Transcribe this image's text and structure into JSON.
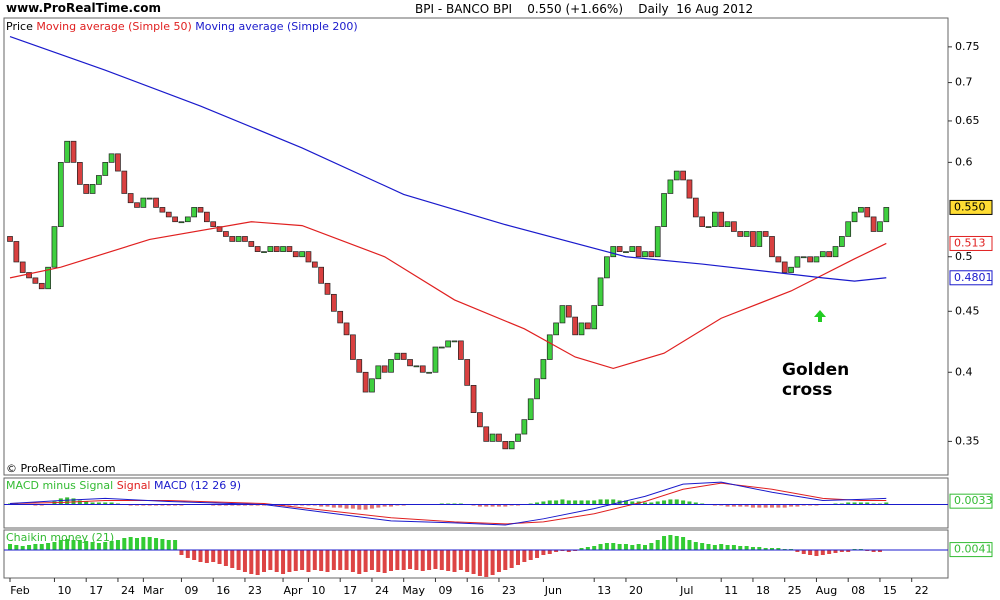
{
  "site": "www.ProRealTime.com",
  "instrument": "BPI - BANCO BPI",
  "quote": "0.550 (+1.66%)",
  "period": "Daily",
  "date": "16 Aug 2012",
  "copyright": "© ProRealTime.com",
  "chart_data": [
    {
      "type": "candlestick",
      "legend_prefix": "Price",
      "up_color": "#3fcf3f",
      "down_color": "#d94040",
      "log": true,
      "ylim": [
        0.328,
        0.793
      ],
      "yticks": [
        0.35,
        0.4,
        0.45,
        0.5,
        0.6,
        0.65,
        0.7,
        0.75
      ],
      "xticks": [
        {
          "value": 0,
          "label": "Feb"
        },
        {
          "value": 7,
          "label": "10"
        },
        {
          "value": 12,
          "label": "17"
        },
        {
          "value": 17,
          "label": "24"
        },
        {
          "value": 21,
          "label": "Mar"
        },
        {
          "value": 27,
          "label": "09"
        },
        {
          "value": 32,
          "label": "16"
        },
        {
          "value": 37,
          "label": "23"
        },
        {
          "value": 43,
          "label": "Apr"
        },
        {
          "value": 47,
          "label": "10"
        },
        {
          "value": 52,
          "label": "17"
        },
        {
          "value": 57,
          "label": "24"
        },
        {
          "value": 62,
          "label": "May"
        },
        {
          "value": 67,
          "label": "09"
        },
        {
          "value": 72,
          "label": "16"
        },
        {
          "value": 77,
          "label": "23"
        },
        {
          "value": 84,
          "label": "Jun"
        },
        {
          "value": 92,
          "label": "13"
        },
        {
          "value": 97,
          "label": "20"
        },
        {
          "value": 105,
          "label": "Jul"
        },
        {
          "value": 112,
          "label": "11"
        },
        {
          "value": 117,
          "label": "18"
        },
        {
          "value": 122,
          "label": "25"
        },
        {
          "value": 127,
          "label": "Aug"
        },
        {
          "value": 132,
          "label": "08"
        },
        {
          "value": 137,
          "label": "15"
        },
        {
          "value": 142,
          "label": "22"
        }
      ],
      "close": [
        0.515,
        0.495,
        0.485,
        0.48,
        0.475,
        0.47,
        0.49,
        0.53,
        0.6,
        0.625,
        0.6,
        0.575,
        0.565,
        0.575,
        0.585,
        0.6,
        0.61,
        0.59,
        0.565,
        0.555,
        0.55,
        0.56,
        0.56,
        0.55,
        0.545,
        0.54,
        0.535,
        0.535,
        0.54,
        0.55,
        0.545,
        0.535,
        0.53,
        0.525,
        0.52,
        0.515,
        0.52,
        0.515,
        0.51,
        0.505,
        0.505,
        0.51,
        0.505,
        0.51,
        0.505,
        0.5,
        0.505,
        0.495,
        0.49,
        0.475,
        0.465,
        0.45,
        0.44,
        0.43,
        0.41,
        0.4,
        0.385,
        0.395,
        0.405,
        0.4,
        0.41,
        0.415,
        0.41,
        0.405,
        0.405,
        0.4,
        0.4,
        0.42,
        0.42,
        0.425,
        0.425,
        0.41,
        0.39,
        0.37,
        0.36,
        0.35,
        0.355,
        0.35,
        0.345,
        0.35,
        0.355,
        0.365,
        0.38,
        0.395,
        0.41,
        0.43,
        0.44,
        0.455,
        0.445,
        0.43,
        0.44,
        0.435,
        0.455,
        0.48,
        0.5,
        0.51,
        0.505,
        0.505,
        0.51,
        0.5,
        0.505,
        0.5,
        0.53,
        0.565,
        0.58,
        0.59,
        0.58,
        0.56,
        0.54,
        0.53,
        0.53,
        0.545,
        0.53,
        0.535,
        0.525,
        0.52,
        0.525,
        0.51,
        0.525,
        0.52,
        0.5,
        0.495,
        0.485,
        0.49,
        0.5,
        0.5,
        0.495,
        0.5,
        0.505,
        0.5,
        0.51,
        0.52,
        0.535,
        0.545,
        0.55,
        0.54,
        0.525,
        0.535,
        0.55
      ],
      "open": [
        0.52,
        0.515,
        0.495,
        0.485,
        0.48,
        0.475,
        0.47,
        0.49,
        0.53,
        0.6,
        0.625,
        0.6,
        0.575,
        0.565,
        0.575,
        0.585,
        0.6,
        0.61,
        0.59,
        0.565,
        0.555,
        0.55,
        0.56,
        0.56,
        0.55,
        0.545,
        0.54,
        0.535,
        0.535,
        0.54,
        0.55,
        0.545,
        0.535,
        0.53,
        0.525,
        0.52,
        0.515,
        0.52,
        0.515,
        0.51,
        0.505,
        0.505,
        0.51,
        0.505,
        0.51,
        0.505,
        0.5,
        0.505,
        0.495,
        0.49,
        0.475,
        0.465,
        0.45,
        0.44,
        0.43,
        0.41,
        0.4,
        0.385,
        0.395,
        0.405,
        0.4,
        0.41,
        0.415,
        0.41,
        0.405,
        0.405,
        0.4,
        0.4,
        0.42,
        0.42,
        0.425,
        0.425,
        0.41,
        0.39,
        0.37,
        0.36,
        0.35,
        0.355,
        0.35,
        0.345,
        0.35,
        0.355,
        0.365,
        0.38,
        0.395,
        0.41,
        0.43,
        0.44,
        0.455,
        0.445,
        0.43,
        0.44,
        0.435,
        0.455,
        0.48,
        0.5,
        0.51,
        0.505,
        0.505,
        0.51,
        0.5,
        0.505,
        0.5,
        0.53,
        0.565,
        0.58,
        0.59,
        0.58,
        0.56,
        0.54,
        0.53,
        0.53,
        0.545,
        0.53,
        0.535,
        0.525,
        0.52,
        0.525,
        0.51,
        0.525,
        0.52,
        0.5,
        0.495,
        0.485,
        0.49,
        0.5,
        0.5,
        0.495,
        0.5,
        0.505,
        0.5,
        0.51,
        0.52,
        0.535,
        0.545,
        0.55,
        0.54,
        0.525,
        0.535
      ],
      "series": [
        {
          "name": "Moving average (Simple 50)",
          "color": "#e02020",
          "x": [
            0,
            8,
            22,
            38,
            46,
            59,
            70,
            81,
            89,
            95,
            103,
            112,
            123,
            133,
            138
          ],
          "values": [
            0.48,
            0.49,
            0.517,
            0.535,
            0.531,
            0.5,
            0.46,
            0.435,
            0.412,
            0.403,
            0.415,
            0.444,
            0.468,
            0.498,
            0.513
          ],
          "last_label": "0.513"
        },
        {
          "name": "Moving average (Simple 200)",
          "color": "#1a1acc",
          "x": [
            0,
            15,
            30,
            46,
            62,
            78,
            97,
            109,
            128,
            133,
            138
          ],
          "values": [
            0.765,
            0.717,
            0.669,
            0.617,
            0.564,
            0.532,
            0.5,
            0.493,
            0.48,
            0.477,
            0.4801
          ],
          "last_label": "0.4801"
        }
      ],
      "price_badge": {
        "value": 0.55,
        "label": "0.550"
      },
      "annotation": "Golden cross"
    },
    {
      "type": "macd",
      "ylim": [
        -0.023,
        0.026
      ],
      "params": "(12 26 9)",
      "badge": 0.0033,
      "series": [
        {
          "name": "MACD minus Signal",
          "color": "#33bb33",
          "values": [
            0.001,
            0.001,
            0,
            0,
            -0.001,
            -0.001,
            0,
            0.003,
            0.006,
            0.007,
            0.006,
            0.004,
            0.003,
            0.002,
            0.002,
            0.002,
            0.002,
            0.001,
            0,
            -0.001,
            -0.001,
            -0.001,
            -0.001,
            -0.001,
            -0.001,
            -0.001,
            -0.001,
            -0.001,
            0,
            0,
            0,
            0,
            -0.001,
            -0.001,
            -0.001,
            -0.001,
            -0.001,
            -0.001,
            -0.001,
            -0.001,
            -0.001,
            -0.001,
            -0.001,
            -0.001,
            -0.001,
            -0.001,
            -0.001,
            -0.001,
            -0.001,
            -0.002,
            -0.002,
            -0.003,
            -0.003,
            -0.004,
            -0.004,
            -0.005,
            -0.005,
            -0.004,
            -0.003,
            -0.002,
            -0.002,
            -0.001,
            -0.001,
            0,
            0,
            0,
            0,
            0,
            0.001,
            0.001,
            0.001,
            0.001,
            0,
            -0.001,
            -0.002,
            -0.002,
            -0.002,
            -0.002,
            -0.002,
            -0.001,
            -0.001,
            0,
            0.001,
            0.002,
            0.003,
            0.004,
            0.004,
            0.005,
            0.004,
            0.004,
            0.004,
            0.004,
            0.004,
            0.005,
            0.005,
            0.005,
            0.004,
            0.004,
            0.003,
            0.003,
            0.002,
            0.002,
            0.003,
            0.004,
            0.005,
            0.005,
            0.004,
            0.003,
            0.002,
            0.001,
            0,
            -0.001,
            -0.001,
            -0.002,
            -0.002,
            -0.002,
            -0.002,
            -0.003,
            -0.003,
            -0.003,
            -0.003,
            -0.003,
            -0.003,
            -0.002,
            -0.002,
            -0.001,
            -0.001,
            -0.001,
            0,
            0,
            0.001,
            0.001,
            0.002,
            0.002,
            0.002,
            0.002,
            0.001,
            0.001,
            0.002
          ]
        },
        {
          "name": "Signal",
          "color": "#e02020",
          "x": [
            0,
            8,
            15,
            25,
            40,
            50,
            60,
            70,
            78,
            84,
            92,
            100,
            106,
            112,
            120,
            128,
            134,
            138
          ],
          "values": [
            0.001,
            0.002,
            0.004,
            0.004,
            0.001,
            -0.006,
            -0.013,
            -0.017,
            -0.019,
            -0.017,
            -0.009,
            0.003,
            0.015,
            0.021,
            0.015,
            0.006,
            0.004,
            0.004
          ]
        },
        {
          "name": "MACD",
          "color": "#1a1acc",
          "x": [
            0,
            8,
            15,
            25,
            40,
            50,
            60,
            70,
            78,
            84,
            92,
            100,
            106,
            112,
            120,
            128,
            134,
            138
          ],
          "values": [
            0.001,
            0.004,
            0.006,
            0.003,
            0,
            -0.008,
            -0.016,
            -0.018,
            -0.02,
            -0.014,
            -0.004,
            0.008,
            0.02,
            0.022,
            0.012,
            0.004,
            0.005,
            0.006
          ]
        }
      ]
    },
    {
      "type": "bar",
      "name": "Chaikin money (21)",
      "up_color": "#33cc33",
      "down_color": "#dd4444",
      "ylim": [
        -0.28,
        0.2
      ],
      "badge": 0.0041,
      "values": [
        0.06,
        0.05,
        0.04,
        0.05,
        0.06,
        0.06,
        0.07,
        0.08,
        0.1,
        0.11,
        0.1,
        0.1,
        0.09,
        0.08,
        0.07,
        0.08,
        0.09,
        0.1,
        0.12,
        0.13,
        0.12,
        0.13,
        0.13,
        0.12,
        0.11,
        0.1,
        0.1,
        -0.05,
        -0.08,
        -0.1,
        -0.12,
        -0.13,
        -0.12,
        -0.14,
        -0.16,
        -0.18,
        -0.2,
        -0.22,
        -0.24,
        -0.25,
        -0.22,
        -0.2,
        -0.22,
        -0.24,
        -0.22,
        -0.21,
        -0.2,
        -0.22,
        -0.2,
        -0.21,
        -0.22,
        -0.2,
        -0.2,
        -0.2,
        -0.22,
        -0.24,
        -0.22,
        -0.2,
        -0.22,
        -0.23,
        -0.21,
        -0.2,
        -0.2,
        -0.19,
        -0.2,
        -0.21,
        -0.2,
        -0.19,
        -0.2,
        -0.21,
        -0.22,
        -0.2,
        -0.22,
        -0.24,
        -0.26,
        -0.27,
        -0.25,
        -0.22,
        -0.2,
        -0.18,
        -0.15,
        -0.12,
        -0.1,
        -0.08,
        -0.05,
        -0.04,
        -0.02,
        -0.01,
        -0.02,
        -0.01,
        0.02,
        0.03,
        0.04,
        0.06,
        0.07,
        0.07,
        0.06,
        0.06,
        0.05,
        0.06,
        0.05,
        0.07,
        0.1,
        0.14,
        0.15,
        0.14,
        0.13,
        0.1,
        0.08,
        0.07,
        0.06,
        0.05,
        0.06,
        0.05,
        0.05,
        0.04,
        0.04,
        0.03,
        0.03,
        0.02,
        0.02,
        0.02,
        0.01,
        0.01,
        -0.02,
        -0.04,
        -0.05,
        -0.06,
        -0.05,
        -0.04,
        -0.03,
        -0.02,
        -0.02,
        0.01,
        0.01,
        -0.01,
        -0.02,
        -0.02,
        0.004
      ]
    }
  ]
}
